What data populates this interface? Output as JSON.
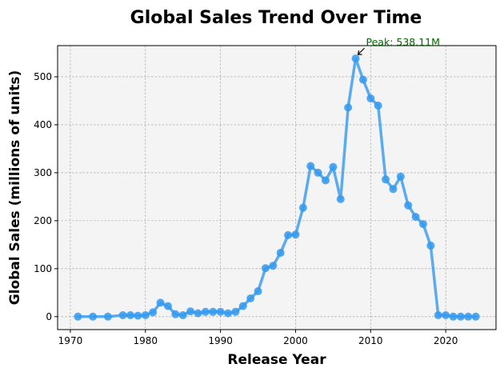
{
  "chart_data": {
    "type": "line",
    "title": "Global Sales Trend Over Time",
    "xlabel": "Release Year",
    "ylabel": "Global Sales (millions of units)",
    "xlim": [
      1968.3,
      2026.7
    ],
    "ylim": [
      -27,
      565
    ],
    "x_ticks": [
      1970,
      1980,
      1990,
      2000,
      2010,
      2020
    ],
    "y_ticks": [
      0,
      100,
      200,
      300,
      400,
      500
    ],
    "grid": true,
    "colors": {
      "line": "#3399ee",
      "plot_background": "#f4f4f4",
      "annotation": "#006400",
      "grid": "#999999"
    },
    "series": [
      {
        "x": [
          1971,
          1973,
          1975,
          1977,
          1978,
          1979,
          1980,
          1981,
          1982,
          1983,
          1984,
          1985,
          1986,
          1987,
          1988,
          1989,
          1990,
          1991,
          1992,
          1993,
          1994,
          1995,
          1996,
          1997,
          1998,
          1999,
          2000,
          2001,
          2002,
          2003,
          2004,
          2005,
          2006,
          2007,
          2008,
          2009,
          2010,
          2011,
          2012,
          2013,
          2014,
          2015,
          2016,
          2017,
          2018,
          2019,
          2020,
          2021,
          2022,
          2023,
          2024
        ],
        "y": [
          0,
          0,
          0,
          3,
          3,
          2,
          3,
          9,
          29,
          22,
          5,
          3,
          11,
          7,
          10,
          10,
          10,
          7,
          10,
          22,
          38,
          53,
          101,
          106,
          133,
          170,
          171,
          227,
          314,
          300,
          284,
          312,
          245,
          436,
          538.11,
          494,
          455,
          440,
          286,
          266,
          292,
          232,
          208,
          193,
          148,
          3,
          3,
          0,
          0,
          0,
          0
        ]
      }
    ],
    "annotation": {
      "text": "Peak: 538.11M",
      "x": 2008,
      "y": 538.11
    }
  }
}
